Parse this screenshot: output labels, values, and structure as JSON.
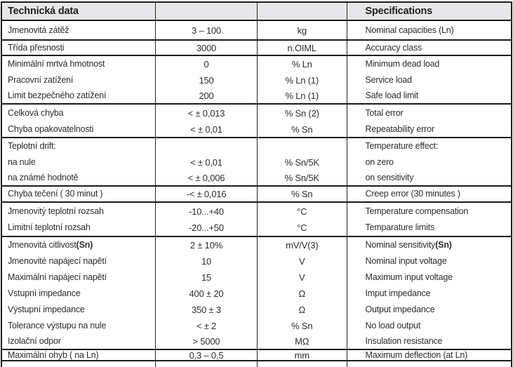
{
  "table": {
    "header": {
      "czech_title": "Technická data",
      "english_title": "Specifications"
    },
    "rows": [
      {
        "cz": "Jmenovitá zátěž",
        "value": "3 – 100",
        "unit": "kg",
        "en": "Nominal capacities (Ln)",
        "group_end": true
      },
      {
        "cz": "Třída přesnosti",
        "value": "3000",
        "unit": "n.OIML",
        "en": "Accuracy class",
        "group_end": true
      },
      {
        "cz": "Minimální mrtvá hmotnost",
        "value": "0",
        "unit": "% Ln",
        "en": "Minimum dead load",
        "group_end": false
      },
      {
        "cz": "Pracovní zatížení",
        "value": "150",
        "unit": "% Ln (1)",
        "en": "Service load",
        "group_end": false
      },
      {
        "cz": "Limit bezpečného zatížení",
        "value": "200",
        "unit": "% Ln (1)",
        "en": "Safe load limit",
        "group_end": true
      },
      {
        "cz": "Celková chyba",
        "value": "< ± 0,013",
        "unit": "% Sn (2)",
        "en": "Total error",
        "group_end": false
      },
      {
        "cz": "Chyba opakovatelnosti",
        "value": "< ± 0,01",
        "unit": "% Sn",
        "en": "Repeatability error",
        "group_end": true
      },
      {
        "cz": "Teplotní drift:",
        "value": "",
        "unit": "",
        "en": "Temperature effect:",
        "group_end": false
      },
      {
        "cz": "na nule",
        "value": "< ± 0,01",
        "unit": "% Sn/5K",
        "en": "on zero",
        "group_end": false
      },
      {
        "cz": "na známé hodnotě",
        "value": "< ± 0,006",
        "unit": "% Sn/5K",
        "en": "on sensitivity",
        "group_end": true
      },
      {
        "cz": "Chyba tečení ( 30 minut )",
        "value": "-< ± 0,016",
        "unit": "% Sn",
        "en": "Creep error (30 minutes )",
        "group_end": true
      },
      {
        "cz": "Jmenovitý teplotní rozsah",
        "value": "-10...+40",
        "unit": "°C",
        "en": "Temperature compensation",
        "group_end": false
      },
      {
        "cz": "Limitní teplotní rozsah",
        "value": "-20...+50",
        "unit": "°C",
        "en": "Temparature limits",
        "group_end": true
      },
      {
        "cz": "Jmenovitá citlivost ",
        "cz_bold": "(Sn)",
        "value": "2 ± 10%",
        "unit": "mV/V(3)",
        "en": "Nominal sensitivity ",
        "en_bold": "(Sn)",
        "group_end": false
      },
      {
        "cz": "Jmenovité napájecí napětí",
        "value": "10",
        "unit": "V",
        "en": "Nominal input voltage",
        "group_end": false
      },
      {
        "cz": "Maximální napájecí napětí",
        "value": "15",
        "unit": "V",
        "en": "Maximum input voltage",
        "group_end": false
      },
      {
        "cz": "Vstupní impedance",
        "value": "400 ± 20",
        "unit": "Ω",
        "en": "Imput impedance",
        "group_end": false
      },
      {
        "cz": "Výstupní impedance",
        "value": "350 ± 3",
        "unit": "Ω",
        "en": "Output impedance",
        "group_end": false
      },
      {
        "cz": "Tolerance výstupu na nule",
        "value": "< ± 2",
        "unit": "% Sn",
        "en": "No load output",
        "group_end": false
      },
      {
        "cz": "Izolační odpor",
        "value": "> 5000",
        "unit": "MΩ",
        "en": "Insulation resistance",
        "group_end": true
      },
      {
        "cz": "Maximální ohyb ( na Ln)",
        "value": "0,3 – 0,5",
        "unit": "mm",
        "en": "Maximum deflection (at Ln)",
        "group_end": true
      }
    ]
  },
  "colors": {
    "header_bg": "#e7e7e9",
    "border": "#1b1b1b",
    "text": "#2e2d2c"
  }
}
